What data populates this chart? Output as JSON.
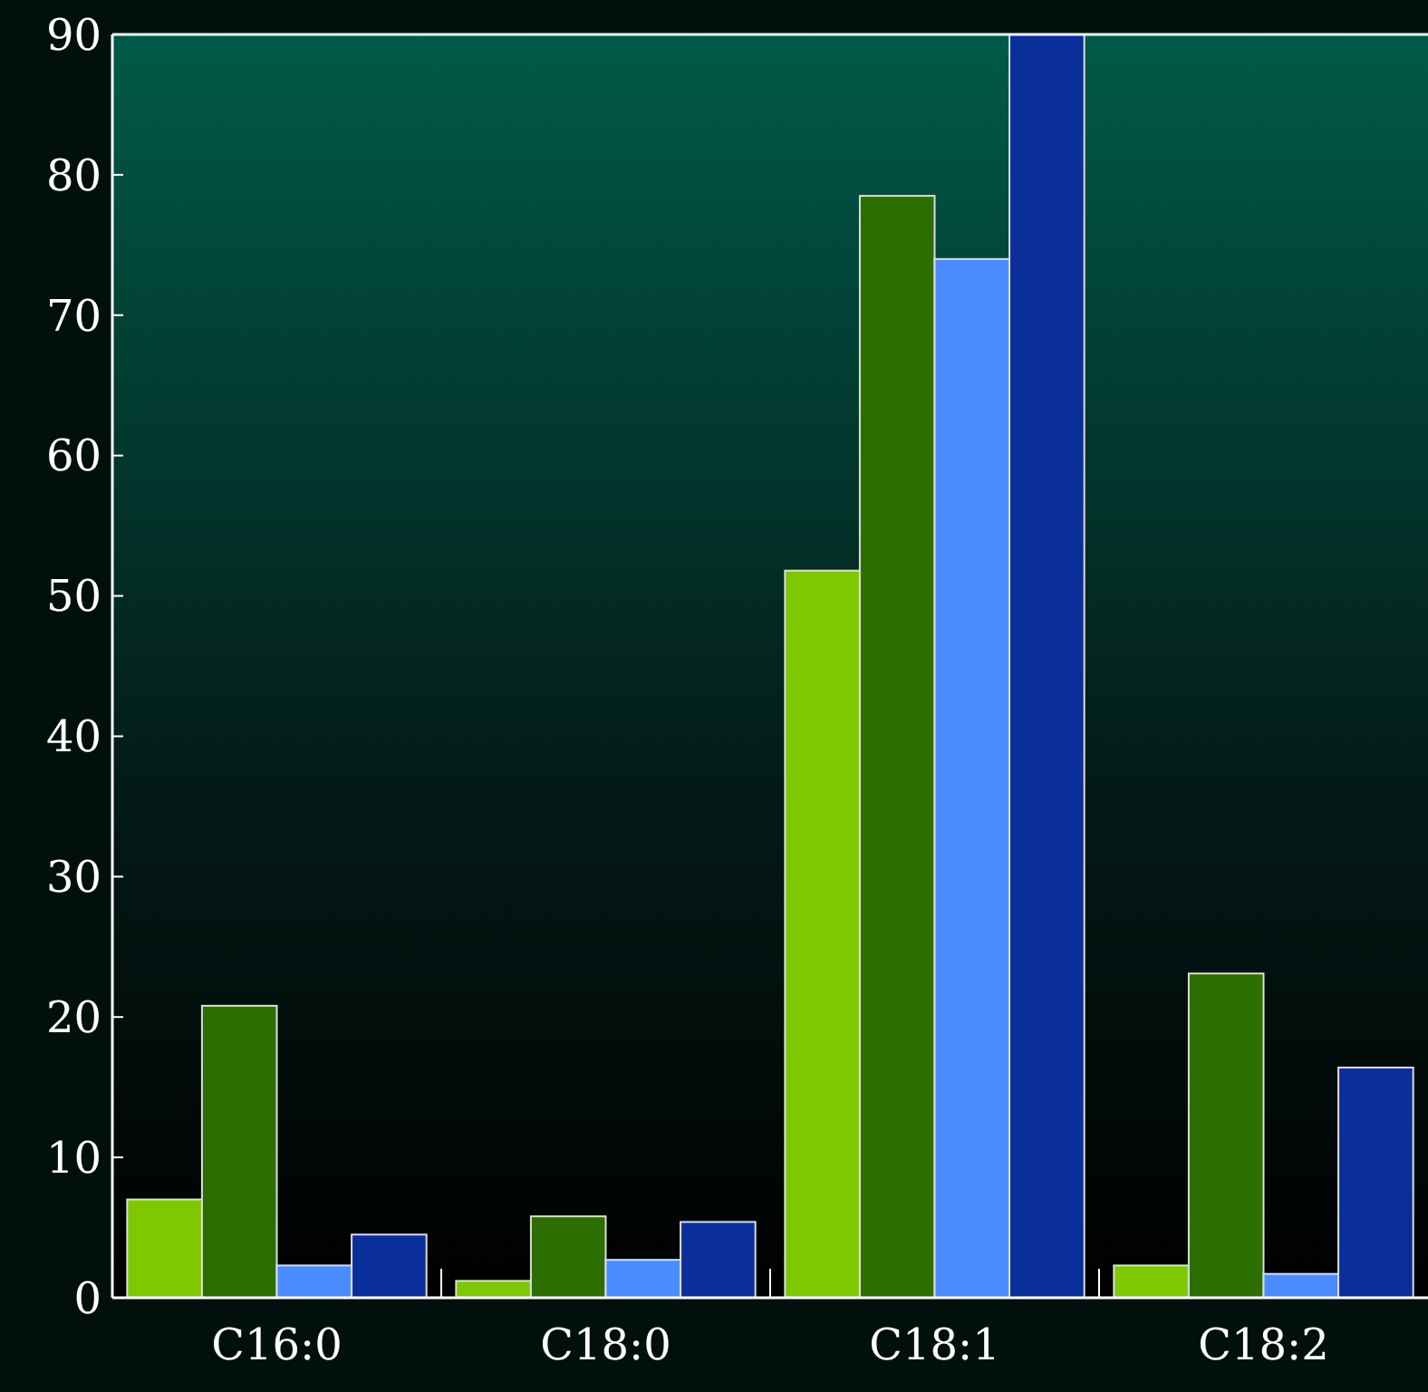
{
  "chart_data": {
    "type": "bar",
    "categories": [
      "C16:0",
      "C18:0",
      "C18:1",
      "C18:2"
    ],
    "series": [
      {
        "color": "#7dc800",
        "values": [
          7.0,
          1.2,
          51.8,
          2.3
        ]
      },
      {
        "color": "#2d6e00",
        "values": [
          20.8,
          5.8,
          78.5,
          23.1
        ]
      },
      {
        "color": "#4a8cff",
        "values": [
          2.3,
          2.7,
          74.0,
          1.7
        ]
      },
      {
        "color": "#0a2e9a",
        "values": [
          4.5,
          5.4,
          90,
          16.4
        ]
      }
    ],
    "ylim": [
      0,
      90
    ],
    "yticks": [
      0,
      10,
      20,
      30,
      40,
      50,
      60,
      70,
      80,
      90
    ],
    "grid": false
  }
}
